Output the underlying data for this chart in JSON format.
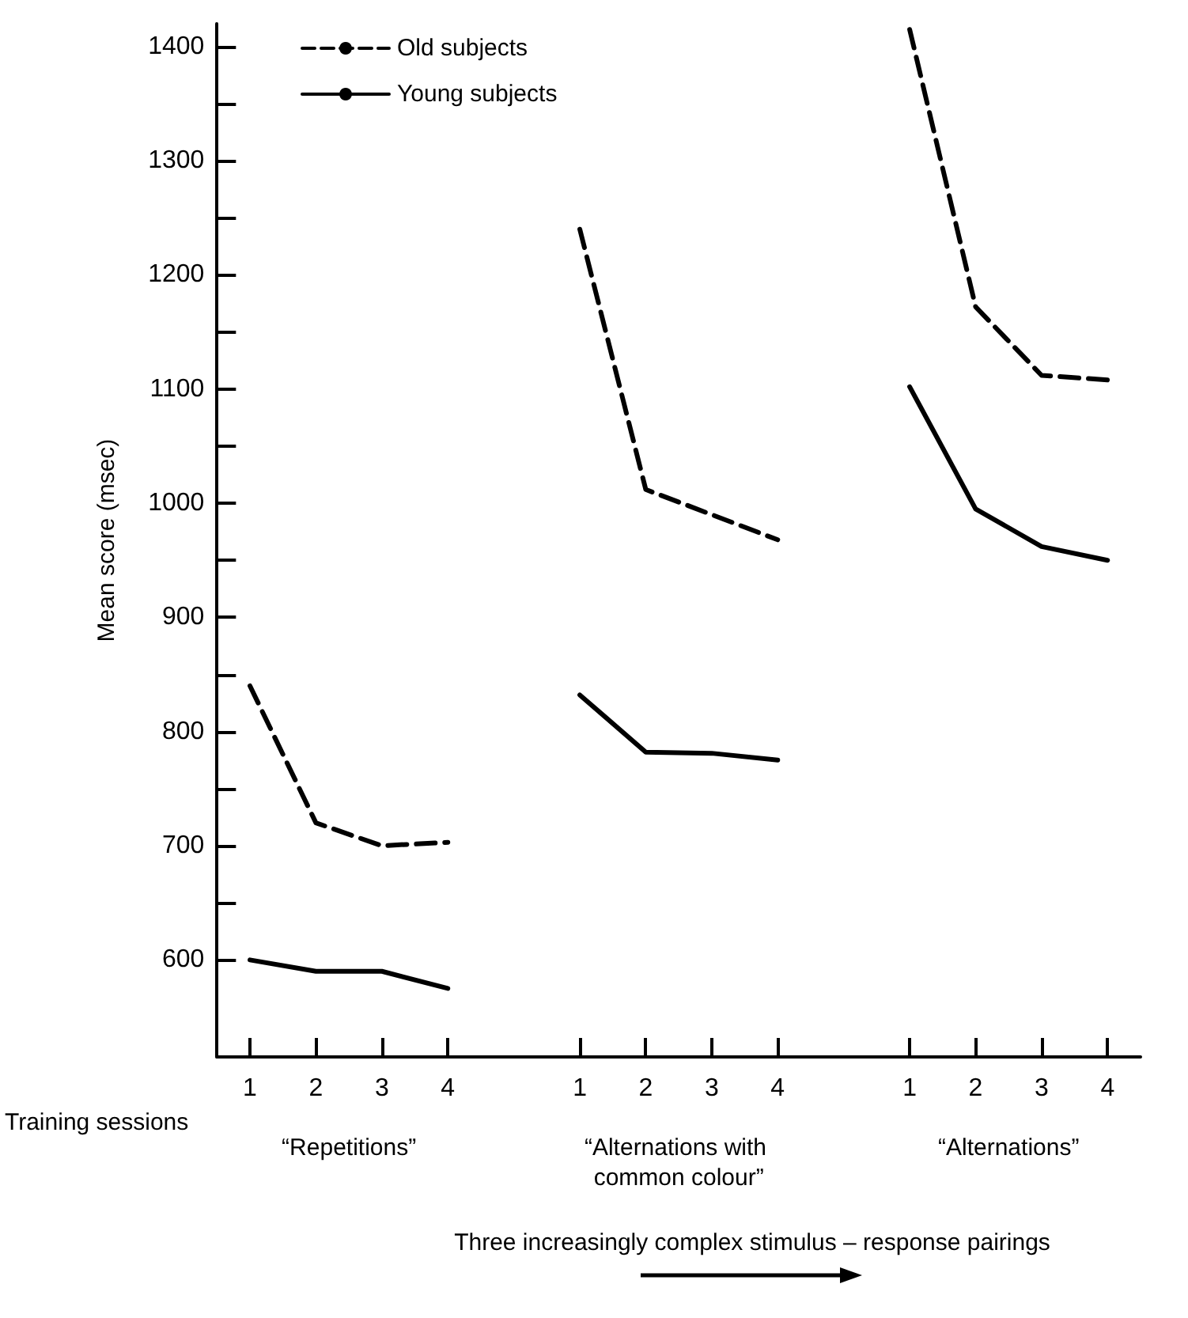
{
  "chart_data": {
    "type": "line",
    "ylabel": "Mean score (msec)",
    "xlabel": "Training sessions",
    "categories": [
      "1",
      "2",
      "3",
      "4",
      null,
      "1",
      "2",
      "3",
      "4",
      null,
      "1",
      "2",
      "3",
      "4"
    ],
    "series": [
      {
        "name": "Old subjects",
        "color": "#000000",
        "line_style": "dashed",
        "values": [
          840,
          720,
          700,
          703,
          null,
          1240,
          1012,
          990,
          968,
          null,
          1415,
          1172,
          1112,
          1108
        ]
      },
      {
        "name": "Young subjects",
        "color": "#000000",
        "line_style": "solid",
        "values": [
          600,
          590,
          590,
          575,
          null,
          832,
          782,
          781,
          775,
          null,
          1102,
          995,
          962,
          950
        ]
      }
    ],
    "ylim": [
      515,
      1420
    ],
    "yticks": [
      600,
      {
        "value": 650,
        "label": null
      },
      700,
      {
        "value": 750,
        "label": null
      },
      800,
      {
        "value": 850,
        "label": null
      },
      900,
      {
        "value": 950,
        "label": null
      },
      1000,
      {
        "value": 1050,
        "label": null
      },
      1100,
      {
        "value": 1150,
        "label": null
      },
      1200,
      {
        "value": 1250,
        "label": null
      },
      1300,
      {
        "value": 1350,
        "label": null
      },
      1400
    ],
    "annotations": [
      "“Repetitions”",
      "“Alternations with common colour”",
      "“Alternations”",
      "Three increasingly complex stimulus – response pairings"
    ],
    "legend": "top left",
    "grid": false,
    "marker": "none"
  }
}
